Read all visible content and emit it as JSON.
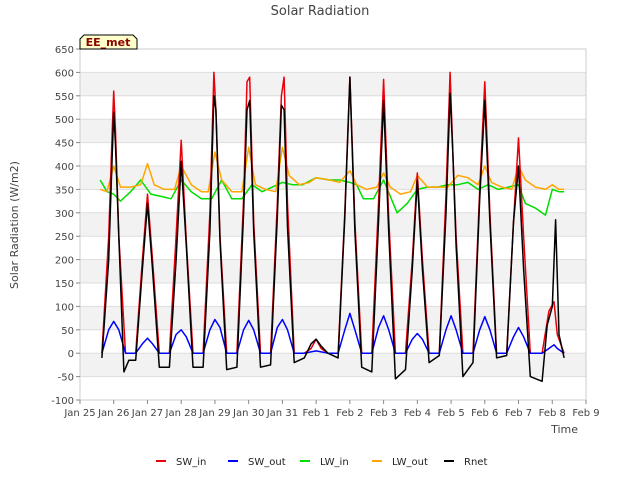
{
  "chart_data": {
    "type": "line",
    "title": "Solar Radiation",
    "xlabel": "Time",
    "ylabel": "Solar Radiation (W/m2)",
    "site_label": "EE_met",
    "xlim": [
      0,
      15
    ],
    "ylim": [
      -100,
      650
    ],
    "yticks": [
      -100,
      -50,
      0,
      50,
      100,
      150,
      200,
      250,
      300,
      350,
      400,
      450,
      500,
      550,
      600,
      650
    ],
    "xticks": [
      {
        "value": 0,
        "label": "Jan 25"
      },
      {
        "value": 1,
        "label": "Jan 26"
      },
      {
        "value": 2,
        "label": "Jan 27"
      },
      {
        "value": 3,
        "label": "Jan 28"
      },
      {
        "value": 4,
        "label": "Jan 29"
      },
      {
        "value": 5,
        "label": "Jan 30"
      },
      {
        "value": 6,
        "label": "Jan 31"
      },
      {
        "value": 7,
        "label": "Feb 1"
      },
      {
        "value": 8,
        "label": "Feb 2"
      },
      {
        "value": 9,
        "label": "Feb 3"
      },
      {
        "value": 10,
        "label": "Feb 4"
      },
      {
        "value": 11,
        "label": "Feb 5"
      },
      {
        "value": 12,
        "label": "Feb 6"
      },
      {
        "value": 13,
        "label": "Feb 7"
      },
      {
        "value": 14,
        "label": "Feb 8"
      },
      {
        "value": 15,
        "label": "Feb 9"
      }
    ],
    "grid": true,
    "legend_position": "bottom",
    "series": [
      {
        "name": "SW_in",
        "color": "#e8000b",
        "x": [
          0.65,
          0.85,
          0.95,
          1.0,
          1.05,
          1.15,
          1.35,
          1.65,
          1.85,
          2.0,
          2.15,
          2.35,
          2.65,
          2.85,
          3.0,
          3.15,
          3.35,
          3.65,
          3.85,
          3.97,
          4.03,
          4.15,
          4.35,
          4.65,
          4.85,
          4.95,
          5.03,
          5.15,
          5.35,
          5.65,
          5.85,
          5.97,
          6.05,
          6.15,
          6.35,
          6.65,
          6.85,
          7.0,
          7.15,
          7.35,
          7.65,
          7.85,
          8.0,
          8.15,
          8.35,
          8.65,
          8.85,
          9.0,
          9.15,
          9.35,
          9.65,
          9.85,
          10.0,
          10.15,
          10.35,
          10.65,
          10.85,
          10.97,
          11.05,
          11.15,
          11.35,
          11.65,
          11.85,
          12.0,
          12.15,
          12.35,
          12.65,
          12.85,
          13.0,
          13.15,
          13.35,
          13.7,
          13.9,
          14.05,
          14.15,
          14.35
        ],
        "y": [
          0,
          250,
          460,
          560,
          480,
          250,
          0,
          0,
          200,
          340,
          200,
          0,
          0,
          250,
          455,
          240,
          0,
          0,
          300,
          600,
          520,
          250,
          0,
          0,
          330,
          580,
          590,
          280,
          0,
          0,
          320,
          550,
          590,
          320,
          0,
          0,
          10,
          30,
          10,
          0,
          0,
          300,
          590,
          280,
          0,
          0,
          320,
          585,
          290,
          0,
          0,
          200,
          385,
          200,
          0,
          0,
          340,
          600,
          430,
          250,
          0,
          0,
          350,
          580,
          300,
          0,
          0,
          280,
          460,
          250,
          0,
          0,
          90,
          110,
          40,
          0
        ]
      },
      {
        "name": "SW_out",
        "color": "#0000ff",
        "x": [
          0.65,
          0.85,
          1.0,
          1.15,
          1.35,
          1.65,
          1.85,
          2.0,
          2.15,
          2.35,
          2.65,
          2.85,
          3.0,
          3.15,
          3.35,
          3.65,
          3.85,
          4.0,
          4.15,
          4.35,
          4.65,
          4.85,
          5.0,
          5.15,
          5.35,
          5.65,
          5.85,
          6.0,
          6.15,
          6.35,
          6.65,
          7.0,
          7.35,
          7.65,
          7.85,
          8.0,
          8.15,
          8.35,
          8.65,
          8.85,
          9.0,
          9.15,
          9.35,
          9.65,
          9.85,
          10.0,
          10.15,
          10.35,
          10.65,
          10.85,
          11.0,
          11.15,
          11.35,
          11.65,
          11.85,
          12.0,
          12.15,
          12.35,
          12.65,
          12.85,
          13.0,
          13.15,
          13.35,
          13.7,
          13.9,
          14.05,
          14.15,
          14.35
        ],
        "y": [
          0,
          50,
          68,
          50,
          0,
          0,
          20,
          32,
          20,
          0,
          0,
          40,
          50,
          35,
          0,
          0,
          50,
          72,
          55,
          0,
          0,
          50,
          70,
          50,
          0,
          0,
          55,
          72,
          50,
          0,
          0,
          5,
          0,
          0,
          50,
          85,
          50,
          0,
          0,
          55,
          80,
          50,
          0,
          0,
          30,
          42,
          30,
          0,
          0,
          50,
          80,
          50,
          0,
          0,
          50,
          78,
          50,
          0,
          0,
          35,
          55,
          35,
          0,
          0,
          10,
          18,
          10,
          0
        ]
      },
      {
        "name": "LW_in",
        "color": "#00dd00",
        "x": [
          0.6,
          0.8,
          1.0,
          1.2,
          1.5,
          1.8,
          2.1,
          2.4,
          2.7,
          3.0,
          3.3,
          3.6,
          3.9,
          4.2,
          4.5,
          4.8,
          5.1,
          5.4,
          5.7,
          6.0,
          6.3,
          6.6,
          7.0,
          7.4,
          7.7,
          8.0,
          8.2,
          8.4,
          8.7,
          9.0,
          9.2,
          9.4,
          9.7,
          10.0,
          10.3,
          10.6,
          10.9,
          11.2,
          11.5,
          11.8,
          12.1,
          12.4,
          12.7,
          13.0,
          13.2,
          13.5,
          13.8,
          14.0,
          14.2,
          14.35
        ],
        "y": [
          370,
          345,
          340,
          325,
          345,
          370,
          340,
          335,
          330,
          370,
          345,
          330,
          330,
          370,
          330,
          330,
          360,
          345,
          355,
          365,
          360,
          360,
          375,
          370,
          370,
          365,
          360,
          330,
          330,
          370,
          335,
          300,
          320,
          350,
          355,
          355,
          360,
          360,
          365,
          350,
          360,
          350,
          355,
          360,
          320,
          310,
          295,
          350,
          345,
          345
        ]
      },
      {
        "name": "LW_out",
        "color": "#ffa500",
        "x": [
          0.6,
          0.8,
          1.0,
          1.2,
          1.5,
          1.8,
          2.0,
          2.2,
          2.5,
          2.8,
          3.0,
          3.3,
          3.6,
          3.8,
          4.0,
          4.2,
          4.5,
          4.8,
          5.0,
          5.2,
          5.5,
          5.8,
          6.0,
          6.2,
          6.5,
          6.8,
          7.0,
          7.4,
          7.7,
          8.0,
          8.2,
          8.5,
          8.8,
          9.0,
          9.2,
          9.5,
          9.8,
          10.0,
          10.3,
          10.6,
          10.9,
          11.2,
          11.5,
          11.8,
          12.0,
          12.2,
          12.5,
          12.8,
          13.0,
          13.2,
          13.5,
          13.8,
          14.0,
          14.2,
          14.35
        ],
        "y": [
          350,
          345,
          400,
          355,
          355,
          360,
          405,
          360,
          350,
          350,
          400,
          360,
          345,
          345,
          430,
          370,
          345,
          345,
          440,
          360,
          350,
          345,
          440,
          380,
          360,
          365,
          375,
          370,
          365,
          390,
          360,
          350,
          355,
          385,
          355,
          340,
          345,
          380,
          355,
          355,
          355,
          380,
          375,
          360,
          400,
          365,
          355,
          350,
          400,
          370,
          355,
          350,
          360,
          350,
          350
        ]
      },
      {
        "name": "Rnet",
        "color": "#000000",
        "x": [
          0.65,
          0.85,
          0.95,
          1.0,
          1.05,
          1.15,
          1.3,
          1.45,
          1.65,
          1.85,
          2.0,
          2.15,
          2.35,
          2.65,
          2.85,
          3.0,
          3.15,
          3.35,
          3.65,
          3.85,
          3.97,
          4.03,
          4.15,
          4.35,
          4.65,
          4.85,
          4.95,
          5.03,
          5.15,
          5.35,
          5.65,
          5.85,
          5.97,
          6.05,
          6.15,
          6.35,
          6.65,
          6.85,
          7.0,
          7.15,
          7.35,
          7.65,
          7.85,
          8.0,
          8.15,
          8.35,
          8.65,
          8.85,
          9.0,
          9.15,
          9.35,
          9.65,
          9.85,
          10.0,
          10.15,
          10.35,
          10.65,
          10.85,
          10.97,
          11.05,
          11.15,
          11.35,
          11.65,
          11.85,
          12.0,
          12.15,
          12.35,
          12.65,
          12.85,
          13.0,
          13.15,
          13.35,
          13.7,
          13.85,
          14.0,
          14.1,
          14.2,
          14.35
        ],
        "y": [
          -10,
          200,
          410,
          515,
          450,
          250,
          -40,
          -15,
          -15,
          180,
          320,
          180,
          -30,
          -30,
          200,
          410,
          230,
          -30,
          -30,
          260,
          550,
          520,
          240,
          -35,
          -30,
          300,
          520,
          540,
          260,
          -30,
          -25,
          290,
          530,
          520,
          270,
          -20,
          -10,
          20,
          30,
          15,
          0,
          -10,
          290,
          590,
          260,
          -30,
          -40,
          280,
          540,
          260,
          -55,
          -35,
          180,
          370,
          180,
          -20,
          -5,
          300,
          555,
          430,
          230,
          -50,
          -20,
          330,
          540,
          280,
          -10,
          -5,
          280,
          400,
          180,
          -50,
          -60,
          60,
          100,
          285,
          40,
          -10
        ]
      }
    ]
  }
}
